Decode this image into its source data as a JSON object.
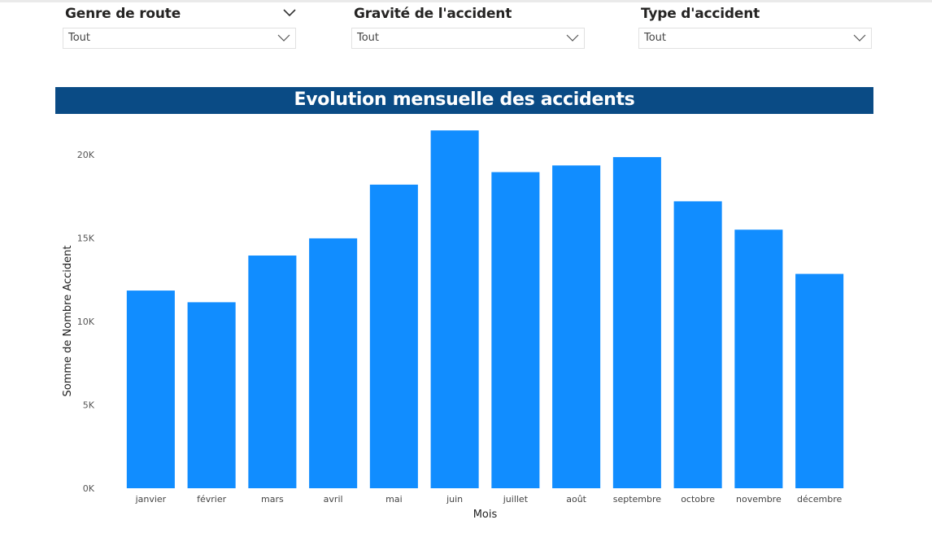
{
  "filters": [
    {
      "title": "Genre de route",
      "value": "Tout"
    },
    {
      "title": "Gravité de l'accident",
      "value": "Tout"
    },
    {
      "title": "Type d'accident",
      "value": "Tout"
    }
  ],
  "chart_title": "Evolution mensuelle des accidents",
  "chart_data": {
    "type": "bar",
    "title": "Evolution mensuelle des accidents",
    "xlabel": "Mois",
    "ylabel": "Somme de Nombre Accident",
    "categories": [
      "janvier",
      "février",
      "mars",
      "avril",
      "mai",
      "juin",
      "juillet",
      "août",
      "septembre",
      "octobre",
      "novembre",
      "décembre"
    ],
    "values": [
      11850,
      11150,
      13950,
      14980,
      18200,
      21450,
      18950,
      19350,
      19850,
      17200,
      15500,
      12850
    ],
    "ylim": [
      0,
      22000
    ],
    "yticks": [
      0,
      5000,
      10000,
      15000,
      20000
    ],
    "ytick_labels": [
      "0K",
      "5K",
      "10K",
      "15K",
      "20K"
    ],
    "grid": false,
    "bar_color": "#118dff"
  },
  "colors": {
    "title_bar": "#0a4b85",
    "bar": "#118dff"
  }
}
